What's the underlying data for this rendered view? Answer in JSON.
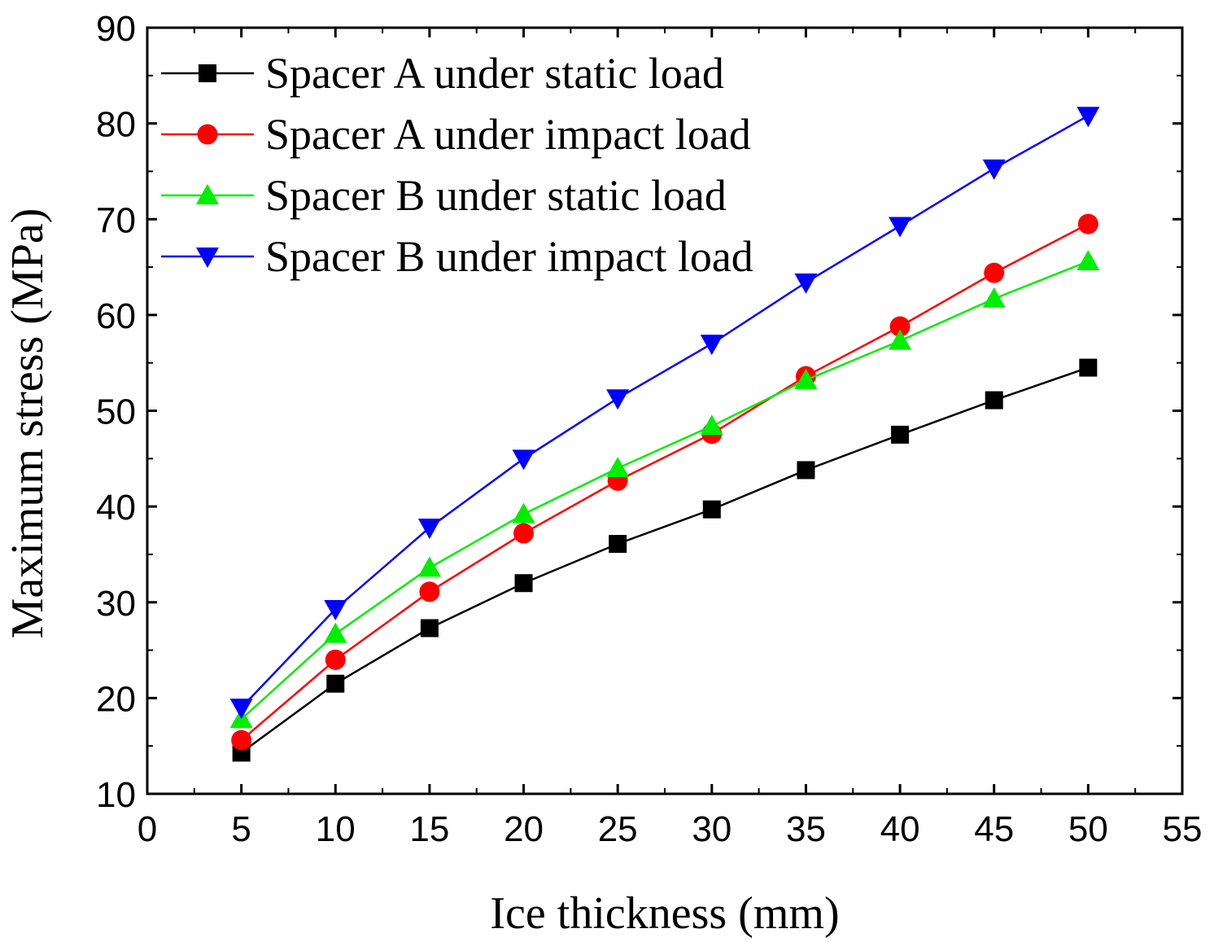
{
  "chart_data": {
    "type": "line",
    "title": "",
    "xlabel": "Ice thickness (mm)",
    "ylabel": "Maximum stress (MPa)",
    "xlim": [
      0,
      55
    ],
    "ylim": [
      10,
      90
    ],
    "xticks": [
      "0",
      "5",
      "10",
      "15",
      "20",
      "25",
      "30",
      "35",
      "40",
      "45",
      "50",
      "55"
    ],
    "yticks": [
      "10",
      "20",
      "30",
      "40",
      "50",
      "60",
      "70",
      "80",
      "90"
    ],
    "grid": false,
    "legend_position": "top-left",
    "x": [
      5,
      10,
      15,
      20,
      25,
      30,
      35,
      40,
      45,
      50
    ],
    "series": [
      {
        "name": "Spacer A under static load",
        "color": "#000000",
        "marker": "square",
        "values": [
          14.3,
          21.5,
          27.3,
          32.0,
          36.1,
          39.7,
          43.8,
          47.5,
          51.1,
          54.5
        ]
      },
      {
        "name": "Spacer A under impact load",
        "color": "#ff0000",
        "marker": "circle",
        "values": [
          15.6,
          24.0,
          31.1,
          37.2,
          42.7,
          47.6,
          53.6,
          58.8,
          64.4,
          69.5
        ]
      },
      {
        "name": "Spacer B under static load",
        "color": "#00ee00",
        "marker": "triangle-up",
        "values": [
          17.8,
          26.7,
          33.6,
          39.2,
          44.0,
          48.4,
          53.2,
          57.3,
          61.7,
          65.6
        ]
      },
      {
        "name": "Spacer B under impact load",
        "color": "#0000ff",
        "marker": "triangle-down",
        "values": [
          19.0,
          29.3,
          37.8,
          45.0,
          51.3,
          57.0,
          63.4,
          69.3,
          75.3,
          80.8
        ]
      }
    ]
  }
}
